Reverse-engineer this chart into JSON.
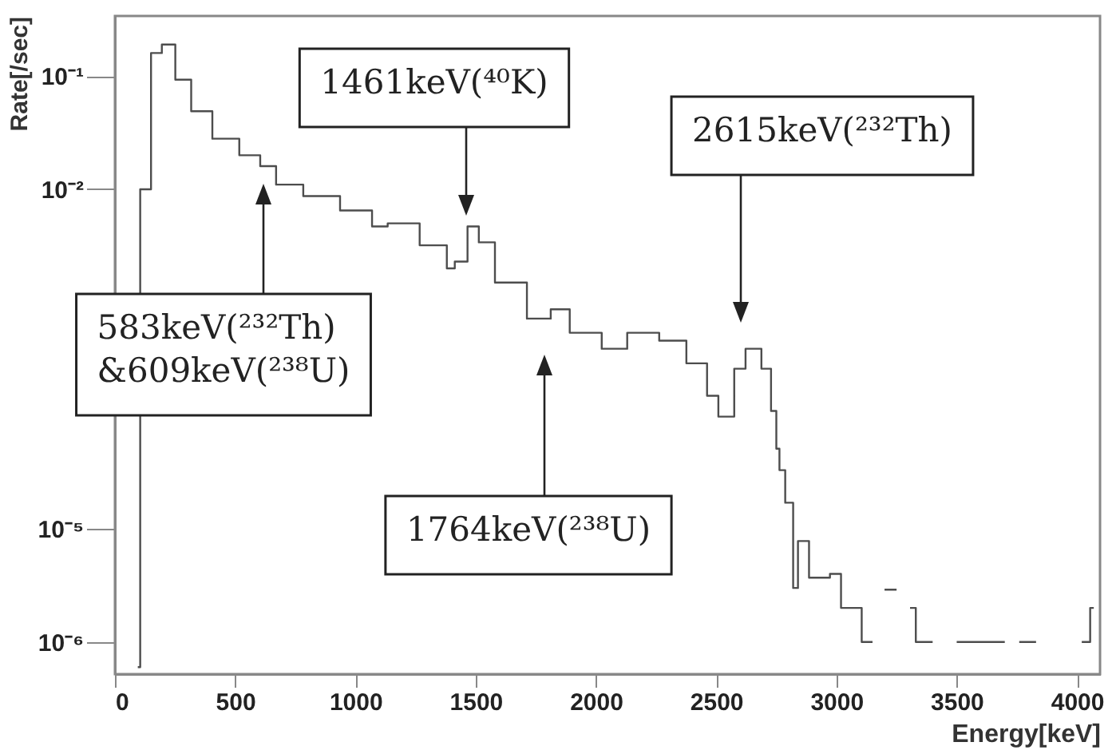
{
  "chart_data": {
    "type": "step",
    "xlabel": "Energy[keV]",
    "ylabel": "Rate[/sec]",
    "x": [
      95,
      105,
      150,
      195,
      251,
      317,
      405,
      517,
      604,
      670,
      783,
      936,
      1069,
      1134,
      1267,
      1380,
      1413,
      1466,
      1513,
      1580,
      1713,
      1812,
      1891,
      2024,
      2130,
      2263,
      2376,
      2462,
      2509,
      2575,
      2622,
      2688,
      2728,
      2750,
      2763,
      2787,
      2820,
      2840,
      2886,
      2973,
      3019,
      3085,
      3105,
      3150,
      3190,
      3200,
      3250,
      3260,
      3306,
      3330,
      3400,
      3450,
      3500,
      3550,
      3600,
      3650,
      3700,
      3720,
      3760,
      3830,
      3840,
      4020,
      4055,
      4070
    ],
    "series": [
      {
        "color": "#4d4d4d",
        "values": [
          6e-07,
          0.01,
          0.16,
          0.19,
          0.093,
          0.049,
          0.028,
          0.02,
          0.016,
          0.011,
          0.0087,
          0.0065,
          0.0047,
          0.005,
          0.0032,
          0.002,
          0.0023,
          0.0047,
          0.0034,
          0.0015,
          0.00072,
          0.00087,
          0.00054,
          0.00039,
          0.00054,
          0.00046,
          0.00029,
          0.00015,
          9.8e-05,
          0.00026,
          0.00039,
          0.00026,
          0.00011,
          5.1e-05,
          3.3e-05,
          1.7e-05,
          3e-06,
          7.8e-06,
          3.7e-06,
          4e-06,
          2e-06,
          2e-06,
          1e-06,
          1e-06,
          null,
          2.9e-06,
          2.9e-06,
          null,
          2e-06,
          1e-06,
          1e-06,
          null,
          1e-06,
          1e-06,
          1e-06,
          1e-06,
          1e-06,
          null,
          1e-06,
          1e-06,
          null,
          1e-06,
          2e-06,
          2e-06
        ]
      }
    ],
    "xlim": [
      0,
      4096
    ],
    "xticks": [
      0,
      500,
      1000,
      1500,
      2000,
      2500,
      3000,
      3500,
      4000
    ],
    "ylim": [
      5.2e-07,
      0.34
    ],
    "log": "y",
    "yticks": [
      {
        "value": 0.1,
        "label": "10⁻¹"
      },
      {
        "value": 0.01,
        "label": "10⁻²"
      },
      {
        "value": 1e-05,
        "label": "10⁻⁵"
      },
      {
        "value": 1e-06,
        "label": "10⁻⁶"
      }
    ],
    "grid": false,
    "annotations": [
      "583keV(²³²Th)\n&609keV(²³⁸U)",
      "1461keV(⁴⁰K)",
      "2615keV(²³²Th)",
      "1764keV(²³⁸U)"
    ]
  }
}
